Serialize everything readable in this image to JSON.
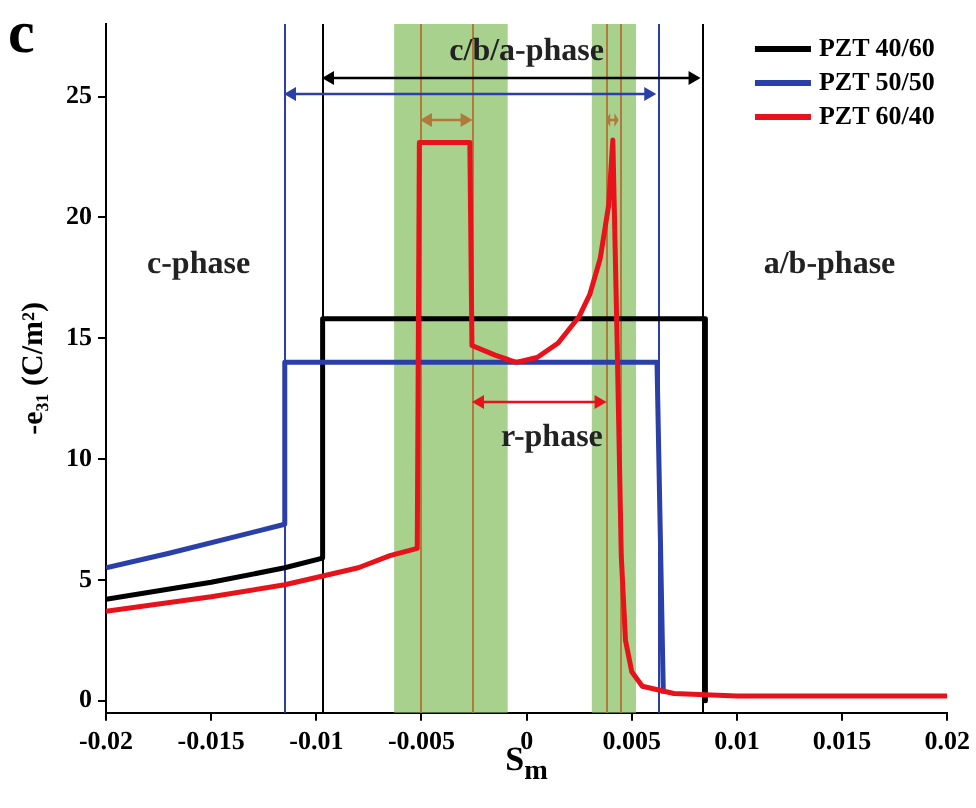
{
  "chart_data": {
    "type": "line",
    "title": "c",
    "xlabel": "S$_{m}$",
    "ylabel": "-e₃₁ (C/m²)",
    "series": [
      {
        "name": "PZT 40/60",
        "color": "#000000",
        "x": [
          -0.02,
          -0.015,
          -0.0115,
          -0.0097,
          -0.0097,
          0.0085,
          0.0085
        ],
        "values": [
          4.2,
          4.9,
          5.5,
          5.9,
          15.8,
          15.8,
          0
        ]
      },
      {
        "name": "PZT 50/50",
        "color": "#2b3fa8",
        "x": [
          -0.02,
          -0.017,
          -0.0115,
          -0.0115,
          0.0062,
          0.0065
        ],
        "values": [
          5.5,
          6.1,
          7.3,
          14.0,
          14.0,
          0.3
        ]
      },
      {
        "name": "PZT 60/40",
        "color": "#e8131a",
        "x": [
          -0.02,
          -0.015,
          -0.0115,
          -0.01,
          -0.008,
          -0.0065,
          -0.0052,
          -0.0051,
          -0.0027,
          -0.0026,
          -0.0015,
          -0.0005,
          0.0005,
          0.0015,
          0.0025,
          0.003,
          0.0035,
          0.0039,
          0.0041,
          0.0043,
          0.0045,
          0.0047,
          0.005,
          0.0055,
          0.007,
          0.01,
          0.015,
          0.02
        ],
        "values": [
          3.7,
          4.3,
          4.8,
          5.1,
          5.5,
          6.0,
          6.3,
          23.1,
          23.1,
          14.7,
          14.3,
          14.0,
          14.2,
          14.8,
          15.9,
          16.8,
          18.3,
          20.5,
          23.2,
          15,
          6,
          2.5,
          1.2,
          0.6,
          0.3,
          0.2,
          0.2,
          0.2
        ]
      }
    ],
    "xlim": [
      -0.02,
      0.02
    ],
    "xticks": [
      -0.02,
      -0.015,
      -0.01,
      -0.005,
      0,
      0.005,
      0.01,
      0.015,
      0.02
    ],
    "ylim": [
      -0.5,
      28
    ],
    "yticks": [
      0,
      5,
      10,
      15,
      20,
      25
    ],
    "bands": [
      {
        "axis": "x",
        "from": -0.0063,
        "to": -0.0009,
        "color": "#8cc168"
      },
      {
        "axis": "x",
        "from": 0.0031,
        "to": 0.0052,
        "color": "#8cc168"
      }
    ],
    "ref_lines": [
      {
        "axis": "x",
        "value": -0.0115,
        "color": "#2b3fa8"
      },
      {
        "axis": "x",
        "value": -0.0097,
        "color": "#000000"
      },
      {
        "axis": "x",
        "value": -0.0051,
        "color": "#b07a3a"
      },
      {
        "axis": "x",
        "value": -0.0026,
        "color": "#b07a3a"
      },
      {
        "axis": "x",
        "value": 0.0038,
        "color": "#b07a3a"
      },
      {
        "axis": "x",
        "value": 0.0044,
        "color": "#b07a3a"
      },
      {
        "axis": "x",
        "value": 0.0062,
        "color": "#2b3fa8"
      },
      {
        "axis": "x",
        "value": 0.0083,
        "color": "#000000"
      }
    ],
    "annotations": [
      "c-phase",
      "a/b-phase",
      "c/b/a-phase",
      "r-phase"
    ],
    "grid": false,
    "legend": "top right",
    "marker": "none",
    "line_style": "solid"
  }
}
